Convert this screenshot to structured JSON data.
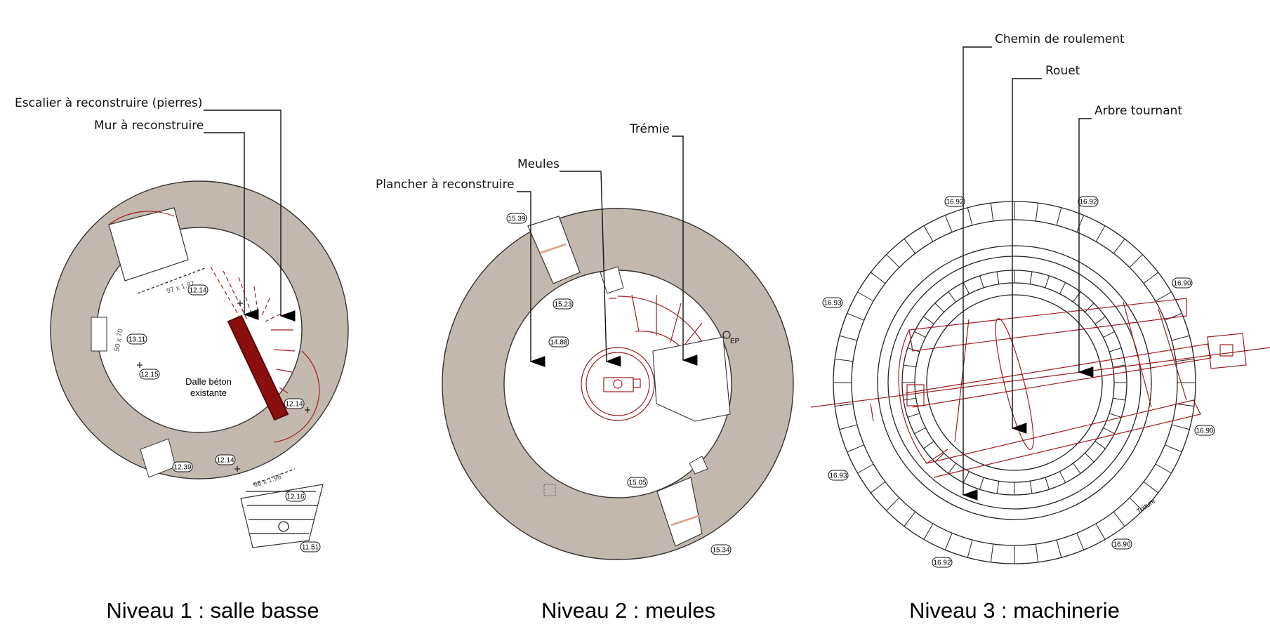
{
  "plans": [
    {
      "title": "Niveau 1 : salle basse",
      "callouts": [
        "Escalier à reconstruire (pierres)",
        "Mur à reconstruire"
      ],
      "notes": [
        "Dalle béton",
        "existante"
      ],
      "levels": [
        "12.14",
        "13.11",
        "12.15",
        "12.14",
        "12.39",
        "12.14",
        "12.16",
        "11.51"
      ],
      "dimensions": [
        "97 x 1.97",
        "50 x 70",
        "96 x 1.96"
      ]
    },
    {
      "title": "Niveau 2 : meules",
      "callouts": [
        "Plancher à reconstruire",
        "Meules",
        "Trémie"
      ],
      "notes": [
        "EP"
      ],
      "levels": [
        "15.39",
        "15.23",
        "14.88",
        "15.05",
        "15.34"
      ]
    },
    {
      "title": "Niveau 3 : machinerie",
      "callouts": [
        "Chemin de roulement",
        "Rouet",
        "Arbre tournant"
      ],
      "notes": [
        "Toiture"
      ],
      "levels": [
        "16.92",
        "16.92",
        "16.93",
        "16.90",
        "16.90",
        "16.93",
        "16.90",
        "16.92"
      ]
    }
  ],
  "colors": {
    "masonry": "#c2b8ad",
    "red_lines": "#a11c1c",
    "new_wall": "#8b0f0f"
  }
}
